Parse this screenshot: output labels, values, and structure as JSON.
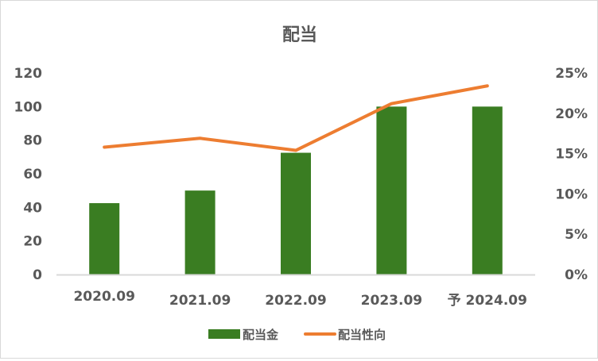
{
  "chart_data": {
    "type": "bar+line",
    "title": "配当",
    "categories": [
      "2020.09",
      "2021.09",
      "2022.09",
      "2023.09",
      "予 2024.09"
    ],
    "series": [
      {
        "name": "配当金",
        "type": "bar",
        "axis": "left",
        "color": "#3a7d22",
        "values": [
          42.5,
          50,
          72.5,
          100,
          100
        ]
      },
      {
        "name": "配当性向",
        "type": "line",
        "axis": "right",
        "color": "#ed7d31",
        "values": [
          15.8,
          16.9,
          15.4,
          21.2,
          23.4
        ]
      }
    ],
    "left_axis": {
      "range": [
        0,
        120
      ],
      "ticks": [
        "0",
        "20",
        "40",
        "60",
        "80",
        "100",
        "120"
      ]
    },
    "right_axis": {
      "range": [
        0,
        25
      ],
      "ticks": [
        "0%",
        "5%",
        "10%",
        "15%",
        "20%",
        "25%"
      ]
    },
    "grid": false,
    "legend_position": "bottom"
  }
}
